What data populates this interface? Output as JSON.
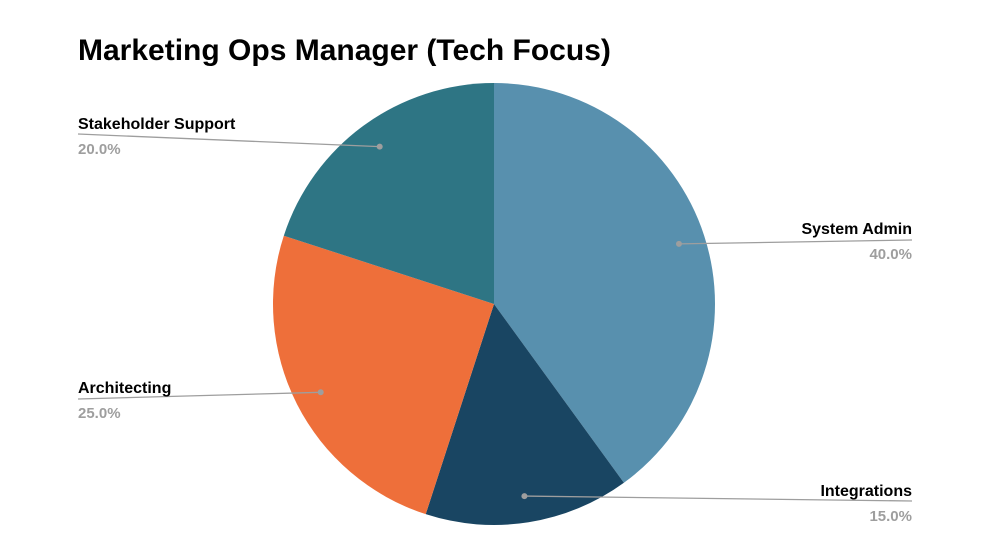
{
  "chart_data": {
    "type": "pie",
    "title": "Marketing Ops Manager (Tech Focus)",
    "slices": [
      {
        "label": "System Admin",
        "value": 40.0,
        "display": "40.0%",
        "color": "#5890ae"
      },
      {
        "label": "Integrations",
        "value": 15.0,
        "display": "15.0%",
        "color": "#194562"
      },
      {
        "label": "Architecting",
        "value": 25.0,
        "display": "25.0%",
        "color": "#ee6f3a"
      },
      {
        "label": "Stakeholder Support",
        "value": 20.0,
        "display": "20.0%",
        "color": "#2e7584"
      }
    ],
    "start_angle_deg": 0,
    "direction": "clockwise",
    "legend": "none",
    "label_style": "leader-lines",
    "leader_color": "#9e9e9e"
  }
}
